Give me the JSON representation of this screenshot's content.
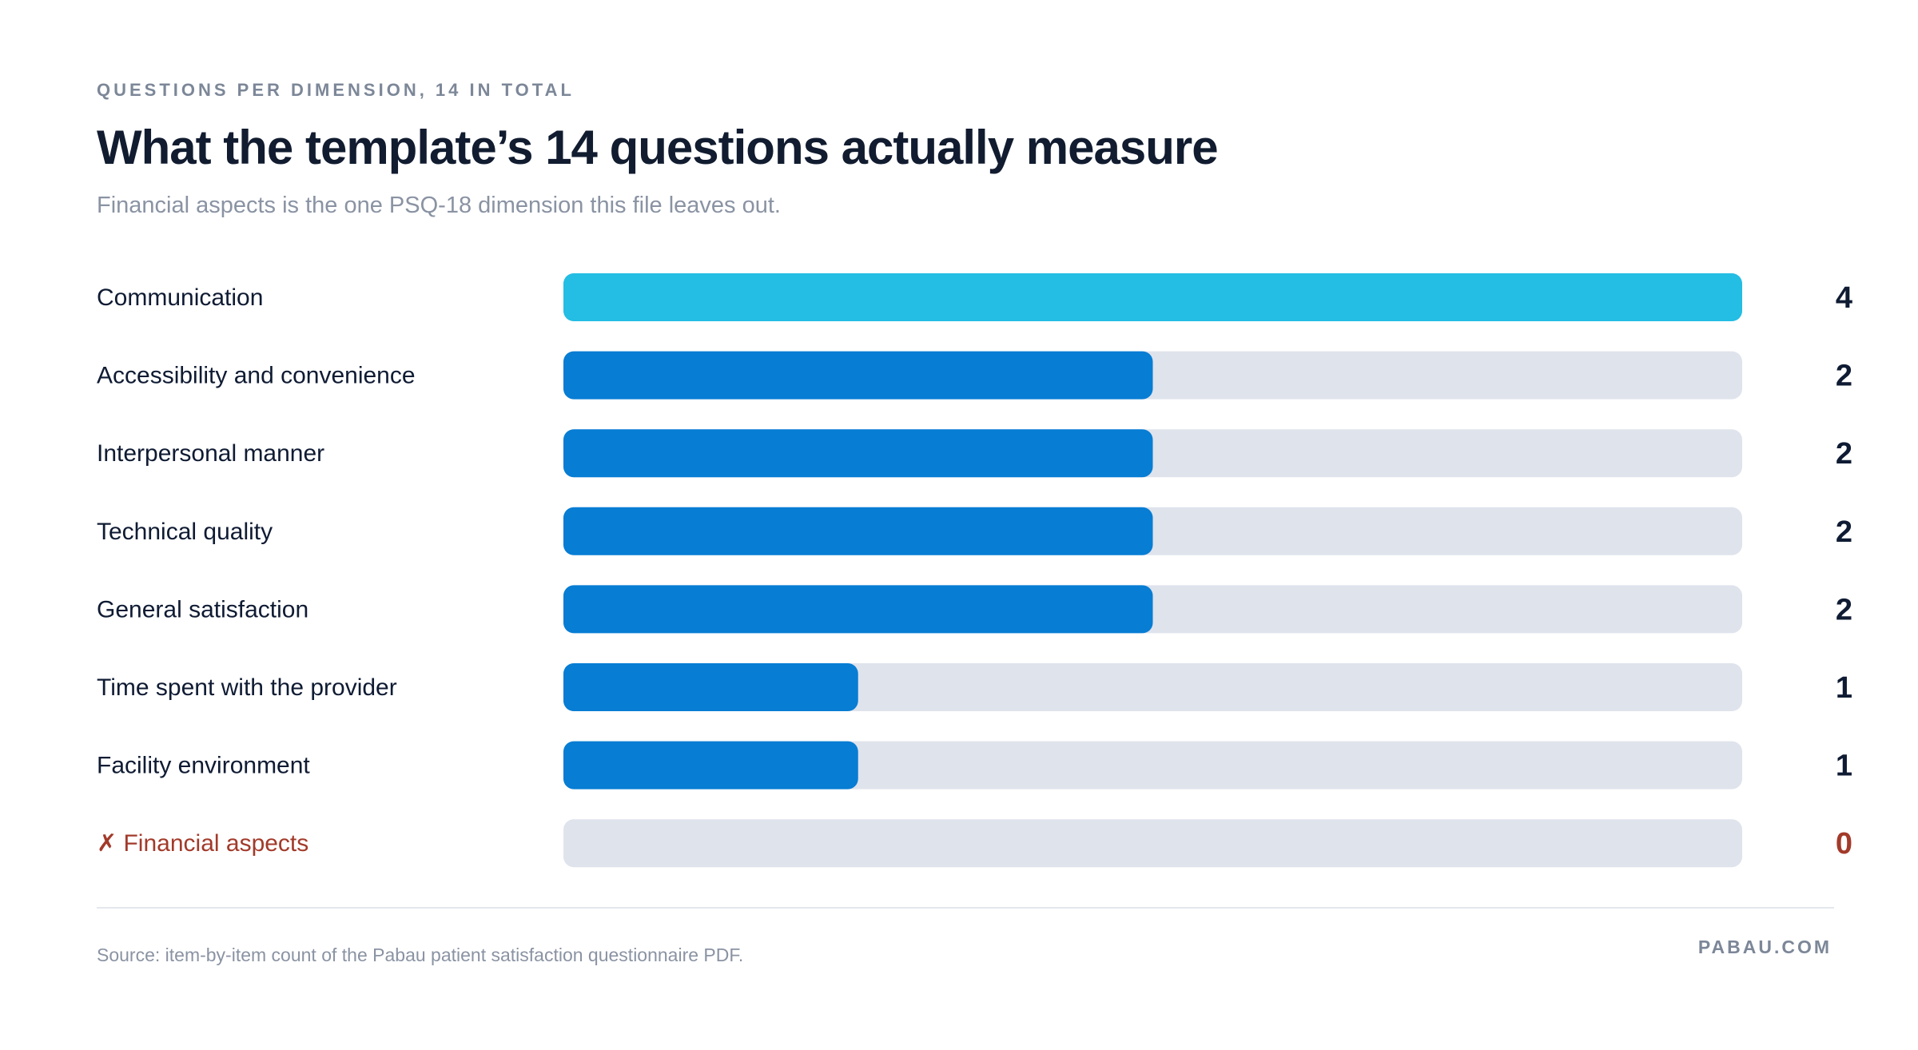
{
  "header": {
    "eyebrow": "QUESTIONS PER DIMENSION, 14 IN TOTAL",
    "title": "What the template’s 14 questions actually measure",
    "subtitle": "Financial aspects is the one PSQ-18 dimension this file leaves out."
  },
  "footer": {
    "source": "Source: item-by-item count of the Pabau patient satisfaction questionnaire PDF.",
    "brand": "PABAU.COM"
  },
  "colors": {
    "highlight": "#24bde3",
    "bar": "#077dd4",
    "track": "#dfe3ec",
    "label": "#0f1b33",
    "missing": "#a23a2a"
  },
  "chart_data": {
    "type": "bar",
    "orientation": "horizontal",
    "categories": [
      "Communication",
      "Accessibility and convenience",
      "Interpersonal manner",
      "Technical quality",
      "General satisfaction",
      "Time spent with the provider",
      "Facility environment",
      "Financial aspects"
    ],
    "values": [
      4,
      2,
      2,
      2,
      2,
      1,
      1,
      0
    ],
    "xlim": [
      0,
      4
    ],
    "missing_marker": "✗",
    "missing_categories": [
      "Financial aspects"
    ],
    "highlighted_categories": [
      "Communication"
    ],
    "grid": false,
    "legend": "none"
  }
}
